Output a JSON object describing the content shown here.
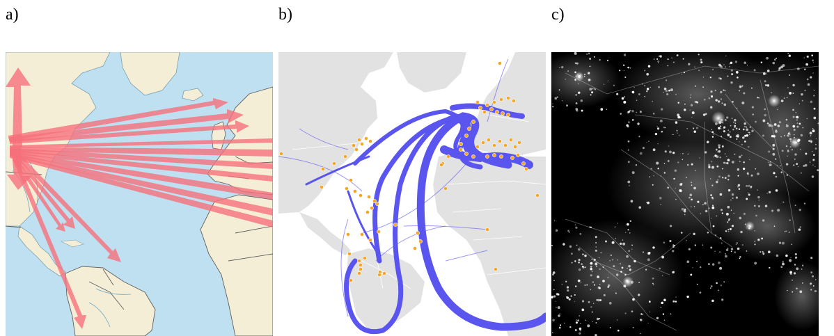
{
  "panels": [
    {
      "label": "a)",
      "style": "flow-arrows-map"
    },
    {
      "label": "b)",
      "style": "flow-bands-map"
    },
    {
      "label": "c)",
      "style": "night-lights-map"
    }
  ],
  "colors": {
    "ocean_a": "#bfe0f0",
    "land_a": "#f3eed5",
    "arrow_a": "#f6707c",
    "border_a": "#5f5f5f",
    "ocean_b": "#ffffff",
    "land_b": "#e2e2e2",
    "flow_b": "#5a55ef",
    "node_b": "#f5a623",
    "background_c": "#000000",
    "lights_c": "#ffffff"
  }
}
